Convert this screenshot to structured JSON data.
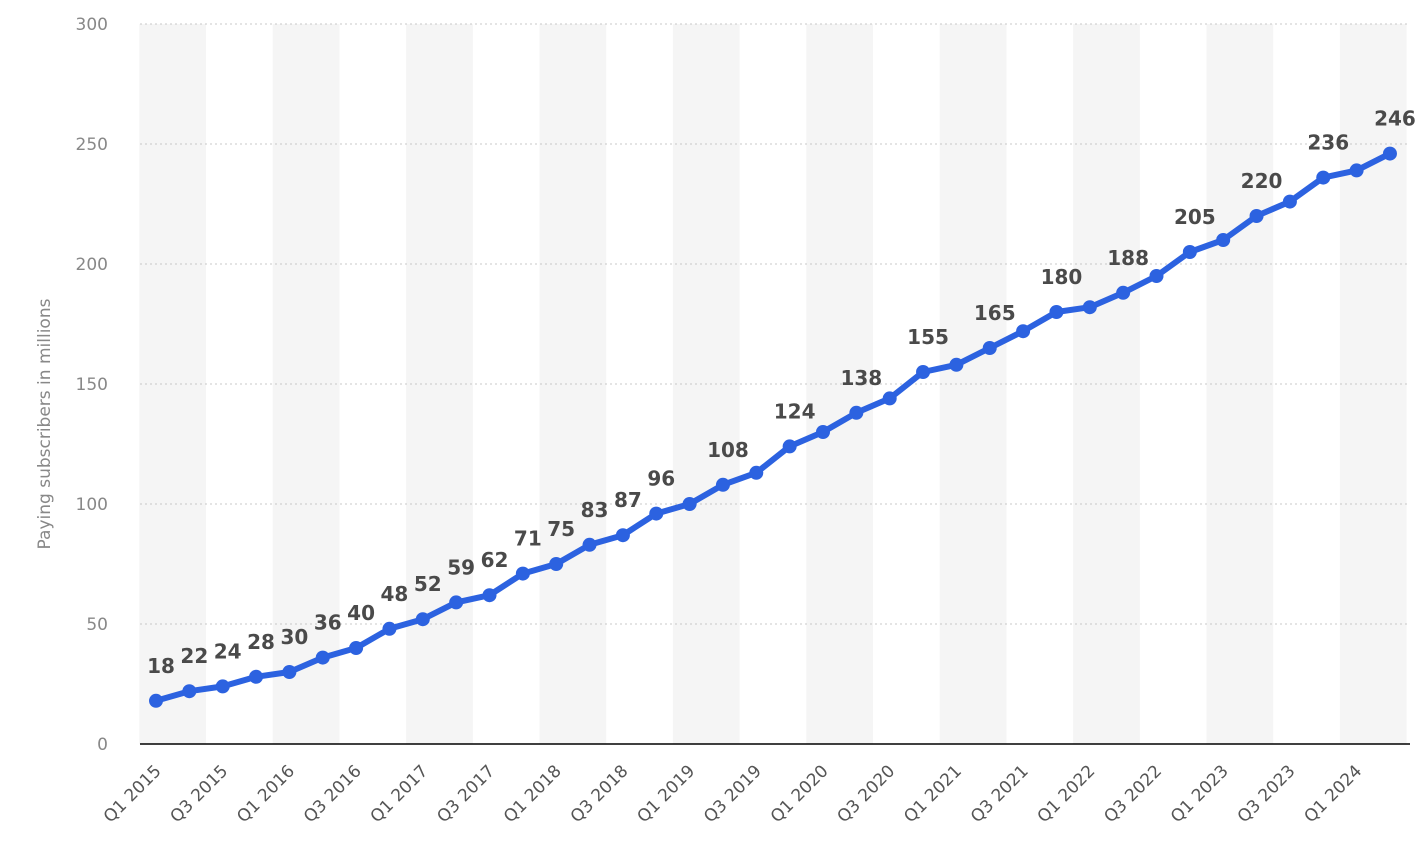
{
  "chart_data": {
    "type": "line",
    "ylabel": "Paying subscribers in millions",
    "xlabel": "",
    "ylim": [
      0,
      300
    ],
    "yticks": [
      0,
      50,
      100,
      150,
      200,
      250,
      300
    ],
    "grid": true,
    "categories": [
      "Q1 2015",
      "Q2 2015",
      "Q3 2015",
      "Q4 2015",
      "Q1 2016",
      "Q2 2016",
      "Q3 2016",
      "Q4 2016",
      "Q1 2017",
      "Q2 2017",
      "Q3 2017",
      "Q4 2017",
      "Q1 2018",
      "Q2 2018",
      "Q3 2018",
      "Q4 2018",
      "Q1 2019",
      "Q2 2019",
      "Q3 2019",
      "Q4 2019",
      "Q1 2020",
      "Q2 2020",
      "Q3 2020",
      "Q4 2020",
      "Q1 2021",
      "Q2 2021",
      "Q3 2021",
      "Q4 2021",
      "Q1 2022",
      "Q2 2022",
      "Q3 2022",
      "Q4 2022",
      "Q1 2023",
      "Q2 2023",
      "Q3 2023",
      "Q4 2023",
      "Q1 2024",
      "Q2 2024"
    ],
    "tick_labels": [
      "Q1 2015",
      "Q3 2015",
      "Q1 2016",
      "Q3 2016",
      "Q1 2017",
      "Q3 2017",
      "Q1 2018",
      "Q3 2018",
      "Q1 2019",
      "Q3 2019",
      "Q1 2020",
      "Q3 2020",
      "Q1 2021",
      "Q3 2021",
      "Q1 2022",
      "Q3 2022",
      "Q1 2023",
      "Q3 2023",
      "Q1 2024"
    ],
    "series": [
      {
        "values": [
          18,
          22,
          24,
          28,
          30,
          36,
          40,
          48,
          52,
          59,
          62,
          71,
          75,
          83,
          87,
          96,
          100,
          108,
          113,
          124,
          130,
          138,
          144,
          155,
          158,
          165,
          172,
          180,
          182,
          188,
          195,
          205,
          210,
          220,
          226,
          236,
          239,
          246
        ],
        "labels": [
          "18",
          "22",
          "24",
          "28",
          "30",
          "36",
          "40",
          "48",
          "52",
          "59",
          "62",
          "71",
          "75",
          "83",
          "87",
          "96",
          "",
          "108",
          "",
          "124",
          "",
          "138",
          "",
          "155",
          "",
          "165",
          "",
          "180",
          "",
          "188",
          "",
          "205",
          "",
          "220",
          "",
          "236",
          "",
          "246"
        ],
        "color": "#2c62e0"
      }
    ],
    "band_color": "#f5f5f5",
    "axis_color": "#000000"
  }
}
